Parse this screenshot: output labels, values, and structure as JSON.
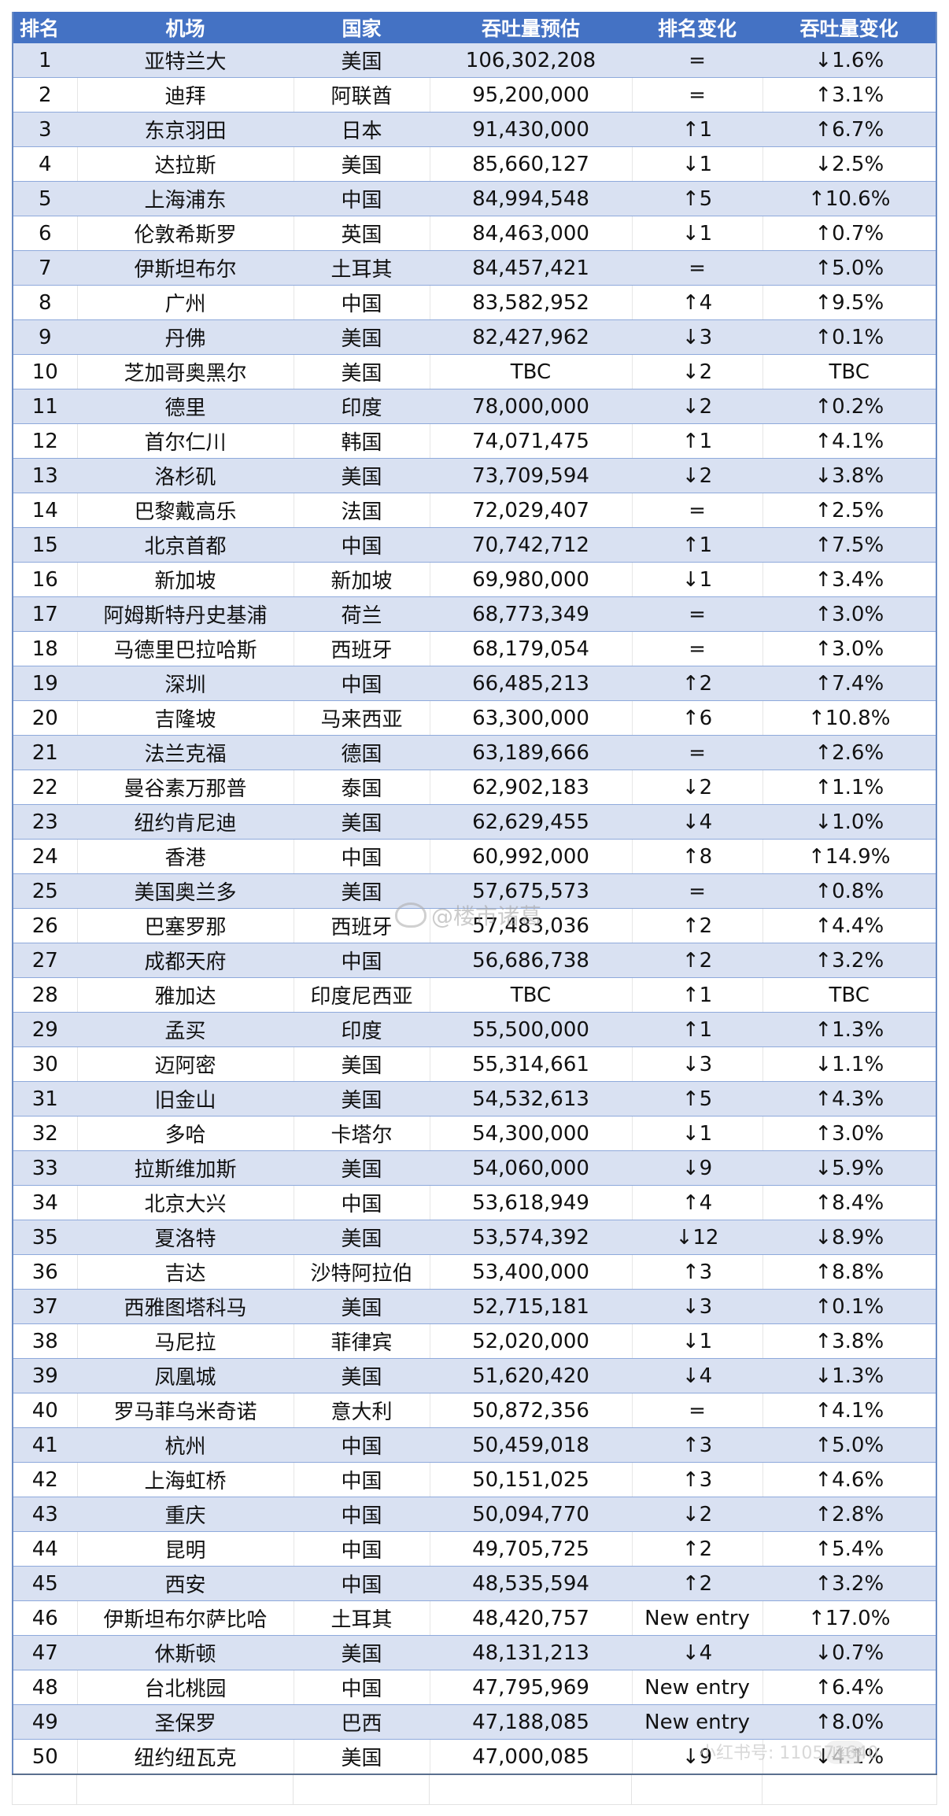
{
  "table": {
    "headers": [
      "排名",
      "机场",
      "国家",
      "吞吐量预估",
      "排名变化",
      "吞吐量变化"
    ],
    "rows": [
      [
        "1",
        "亚特兰大",
        "美国",
        "106,302,208",
        "=",
        "↓1.6%"
      ],
      [
        "2",
        "迪拜",
        "阿联酋",
        "95,200,000",
        "=",
        "↑3.1%"
      ],
      [
        "3",
        "东京羽田",
        "日本",
        "91,430,000",
        "↑1",
        "↑6.7%"
      ],
      [
        "4",
        "达拉斯",
        "美国",
        "85,660,127",
        "↓1",
        "↓2.5%"
      ],
      [
        "5",
        "上海浦东",
        "中国",
        "84,994,548",
        "↑5",
        "↑10.6%"
      ],
      [
        "6",
        "伦敦希斯罗",
        "英国",
        "84,463,000",
        "↓1",
        "↑0.7%"
      ],
      [
        "7",
        "伊斯坦布尔",
        "土耳其",
        "84,457,421",
        "=",
        "↑5.0%"
      ],
      [
        "8",
        "广州",
        "中国",
        "83,582,952",
        "↑4",
        "↑9.5%"
      ],
      [
        "9",
        "丹佛",
        "美国",
        "82,427,962",
        "↓3",
        "↑0.1%"
      ],
      [
        "10",
        "芝加哥奥黑尔",
        "美国",
        "TBC",
        "↓2",
        "TBC"
      ],
      [
        "11",
        "德里",
        "印度",
        "78,000,000",
        "↓2",
        "↑0.2%"
      ],
      [
        "12",
        "首尔仁川",
        "韩国",
        "74,071,475",
        "↑1",
        "↑4.1%"
      ],
      [
        "13",
        "洛杉矶",
        "美国",
        "73,709,594",
        "↓2",
        "↓3.8%"
      ],
      [
        "14",
        "巴黎戴高乐",
        "法国",
        "72,029,407",
        "=",
        "↑2.5%"
      ],
      [
        "15",
        "北京首都",
        "中国",
        "70,742,712",
        "↑1",
        "↑7.5%"
      ],
      [
        "16",
        "新加坡",
        "新加坡",
        "69,980,000",
        "↓1",
        "↑3.4%"
      ],
      [
        "17",
        "阿姆斯特丹史基浦",
        "荷兰",
        "68,773,349",
        "=",
        "↑3.0%"
      ],
      [
        "18",
        "马德里巴拉哈斯",
        "西班牙",
        "68,179,054",
        "=",
        "↑3.0%"
      ],
      [
        "19",
        "深圳",
        "中国",
        "66,485,213",
        "↑2",
        "↑7.4%"
      ],
      [
        "20",
        "吉隆坡",
        "马来西亚",
        "63,300,000",
        "↑6",
        "↑10.8%"
      ],
      [
        "21",
        "法兰克福",
        "德国",
        "63,189,666",
        "=",
        "↑2.6%"
      ],
      [
        "22",
        "曼谷素万那普",
        "泰国",
        "62,902,183",
        "↓2",
        "↑1.1%"
      ],
      [
        "23",
        "纽约肯尼迪",
        "美国",
        "62,629,455",
        "↓4",
        "↓1.0%"
      ],
      [
        "24",
        "香港",
        "中国",
        "60,992,000",
        "↑8",
        "↑14.9%"
      ],
      [
        "25",
        "美国奥兰多",
        "美国",
        "57,675,573",
        "=",
        "↑0.8%"
      ],
      [
        "26",
        "巴塞罗那",
        "西班牙",
        "57,483,036",
        "↑2",
        "↑4.4%"
      ],
      [
        "27",
        "成都天府",
        "中国",
        "56,686,738",
        "↑2",
        "↑3.2%"
      ],
      [
        "28",
        "雅加达",
        "印度尼西亚",
        "TBC",
        "↑1",
        "TBC"
      ],
      [
        "29",
        "孟买",
        "印度",
        "55,500,000",
        "↑1",
        "↑1.3%"
      ],
      [
        "30",
        "迈阿密",
        "美国",
        "55,314,661",
        "↓3",
        "↓1.1%"
      ],
      [
        "31",
        "旧金山",
        "美国",
        "54,532,613",
        "↑5",
        "↑4.3%"
      ],
      [
        "32",
        "多哈",
        "卡塔尔",
        "54,300,000",
        "↓1",
        "↑3.0%"
      ],
      [
        "33",
        "拉斯维加斯",
        "美国",
        "54,060,000",
        "↓9",
        "↓5.9%"
      ],
      [
        "34",
        "北京大兴",
        "中国",
        "53,618,949",
        "↑4",
        "↑8.4%"
      ],
      [
        "35",
        "夏洛特",
        "美国",
        "53,574,392",
        "↓12",
        "↓8.9%"
      ],
      [
        "36",
        "吉达",
        "沙特阿拉伯",
        "53,400,000",
        "↑3",
        "↑8.8%"
      ],
      [
        "37",
        "西雅图塔科马",
        "美国",
        "52,715,181",
        "↓3",
        "↑0.1%"
      ],
      [
        "38",
        "马尼拉",
        "菲律宾",
        "52,020,000",
        "↓1",
        "↑3.8%"
      ],
      [
        "39",
        "凤凰城",
        "美国",
        "51,620,420",
        "↓4",
        "↓1.3%"
      ],
      [
        "40",
        "罗马菲乌米奇诺",
        "意大利",
        "50,872,356",
        "=",
        "↑4.1%"
      ],
      [
        "41",
        "杭州",
        "中国",
        "50,459,018",
        "↑3",
        "↑5.0%"
      ],
      [
        "42",
        "上海虹桥",
        "中国",
        "50,151,025",
        "↑3",
        "↑4.6%"
      ],
      [
        "43",
        "重庆",
        "中国",
        "50,094,770",
        "↓2",
        "↑2.8%"
      ],
      [
        "44",
        "昆明",
        "中国",
        "49,705,725",
        "↑2",
        "↑5.4%"
      ],
      [
        "45",
        "西安",
        "中国",
        "48,535,594",
        "↑2",
        "↑3.2%"
      ],
      [
        "46",
        "伊斯坦布尔萨比哈",
        "土耳其",
        "48,420,757",
        "New entry",
        "↑17.0%"
      ],
      [
        "47",
        "休斯顿",
        "美国",
        "48,131,213",
        "↓4",
        "↓0.7%"
      ],
      [
        "48",
        "台北桃园",
        "中国",
        "47,795,969",
        "New entry",
        "↑6.4%"
      ],
      [
        "49",
        "圣保罗",
        "巴西",
        "47,188,085",
        "New entry",
        "↑8.0%"
      ],
      [
        "50",
        "纽约纽瓦克",
        "美国",
        "47,000,085",
        "↓9",
        "↓4.1%"
      ]
    ]
  },
  "watermarks": {
    "weibo": "@楼市诸葛",
    "xiaohongshu_id": "小红书号: 110571640",
    "xiaohongshu_logo": "小红书"
  },
  "colors": {
    "header_bg": "#4472C4",
    "header_text": "#FFFFFF",
    "shaded_row": "#D9E1F2",
    "row_border": "#8EA9DB"
  }
}
